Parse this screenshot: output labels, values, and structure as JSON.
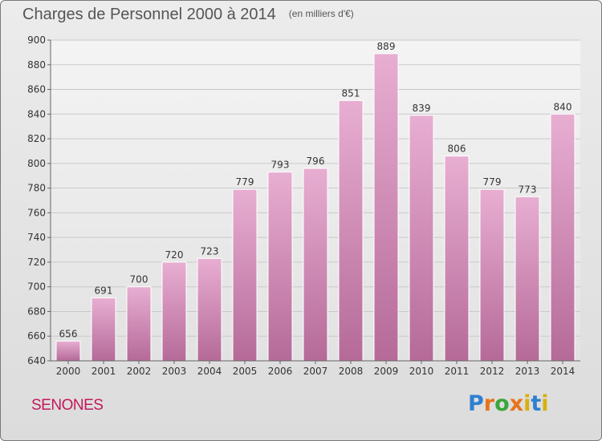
{
  "header": {
    "title": "Charges de Personnel 2000 à 2014",
    "subtitle": "(en milliers d'€)"
  },
  "footer": {
    "commune": "SENONES",
    "logo_letters": [
      "P",
      "r",
      "o",
      "x",
      "i",
      "t",
      "i"
    ],
    "logo_colors": [
      "#2f7fd0",
      "#e8731a",
      "#3aa63a",
      "#e8731a",
      "#d8b00a",
      "#2f7fd0",
      "#d8b00a"
    ]
  },
  "chart_data": {
    "type": "bar",
    "categories": [
      "2000",
      "2001",
      "2002",
      "2003",
      "2004",
      "2005",
      "2006",
      "2007",
      "2008",
      "2009",
      "2010",
      "2011",
      "2012",
      "2013",
      "2014"
    ],
    "values": [
      656,
      691,
      700,
      720,
      723,
      779,
      793,
      796,
      851,
      889,
      839,
      806,
      779,
      773,
      840
    ],
    "data_labels": [
      "656",
      "691",
      "700",
      "720",
      "723",
      "779",
      "793",
      "796",
      "851",
      "889",
      "839",
      "806",
      "779",
      "773",
      "840"
    ],
    "ylim": [
      640,
      900
    ],
    "yticks": [
      640,
      660,
      680,
      700,
      720,
      740,
      760,
      780,
      800,
      820,
      840,
      860,
      880,
      900
    ],
    "grid": true,
    "bar_color": "#d58fba",
    "xlabel": "",
    "ylabel": ""
  }
}
